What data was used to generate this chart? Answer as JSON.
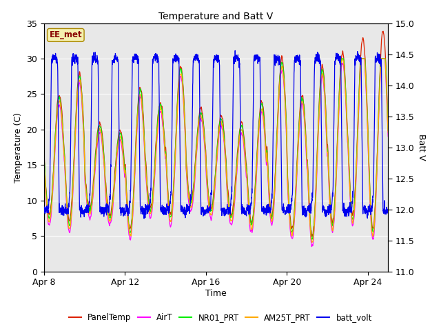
{
  "title": "Temperature and Batt V",
  "xlabel": "Time",
  "ylabel_left": "Temperature (C)",
  "ylabel_right": "Batt V",
  "station_label": "EE_met",
  "ylim_left": [
    0,
    35
  ],
  "ylim_right": [
    11.0,
    15.0
  ],
  "x_tick_labels": [
    "Apr 8",
    "Apr 12",
    "Apr 16",
    "Apr 20",
    "Apr 24"
  ],
  "x_tick_positions": [
    0,
    4,
    8,
    12,
    16
  ],
  "y_left_ticks": [
    0,
    5,
    10,
    15,
    20,
    25,
    30,
    35
  ],
  "y_right_ticks": [
    11.0,
    11.5,
    12.0,
    12.5,
    13.0,
    13.5,
    14.0,
    14.5,
    15.0
  ],
  "colors": {
    "PanelTemp": "#dd2200",
    "AirT": "#ff00ff",
    "NR01_PRT": "#00ee00",
    "AM25T_PRT": "#ffaa00",
    "batt_volt": "#0000ee"
  },
  "figure_bg": "#ffffff",
  "plot_bg": "#e8e8e8",
  "grid_color": "#ffffff",
  "n_days": 17,
  "pts_per_day": 144,
  "seed": 12345
}
